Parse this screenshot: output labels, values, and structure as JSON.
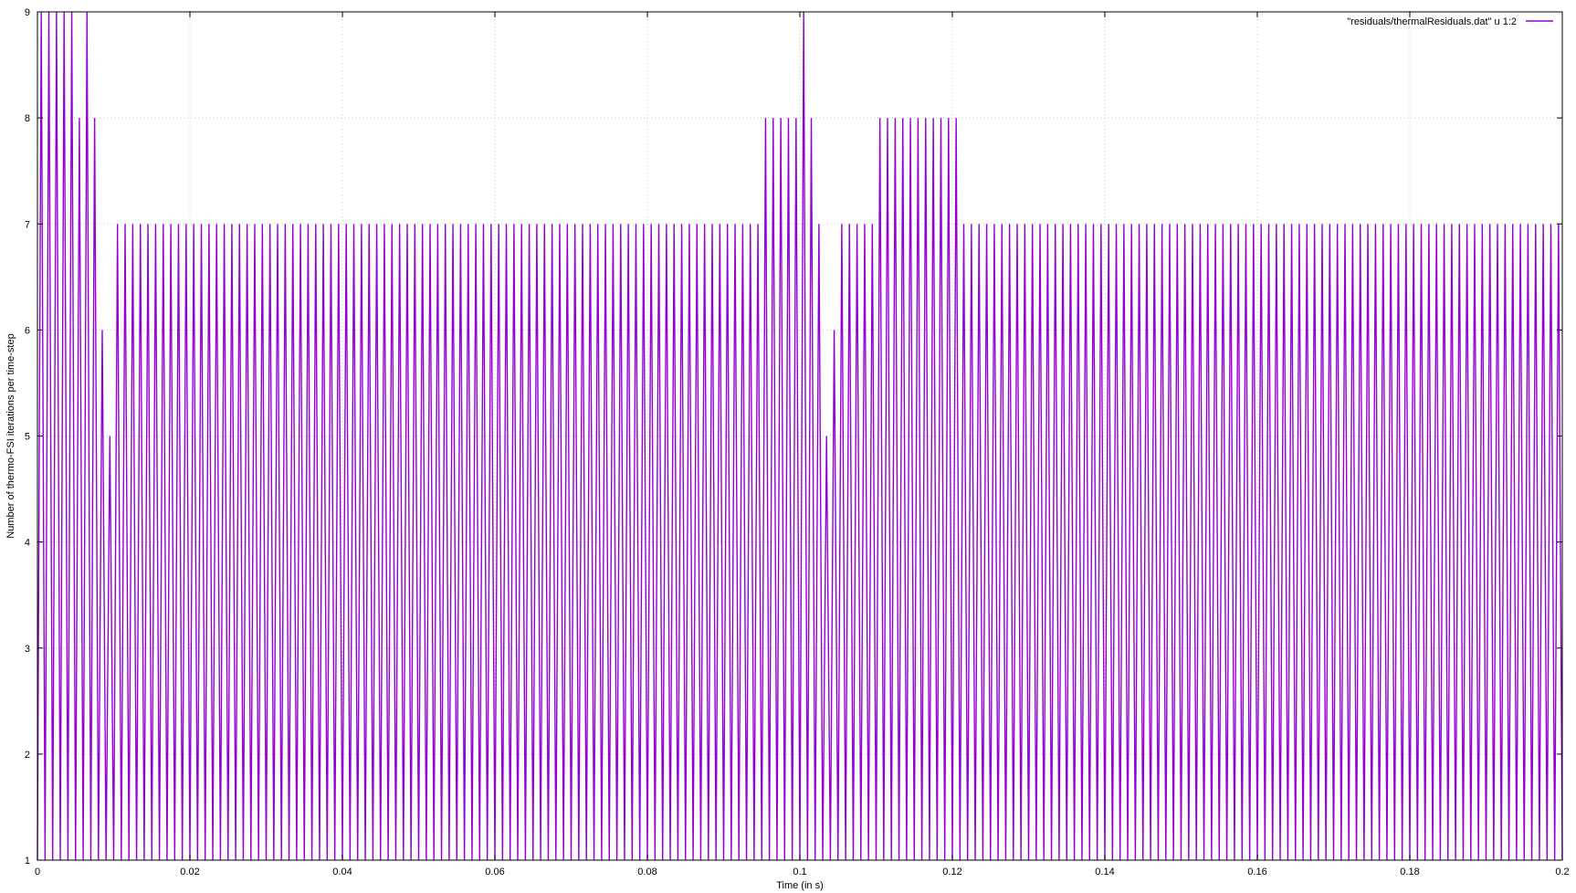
{
  "chart_data": {
    "type": "line",
    "title": "",
    "xlabel": "Time (in s)",
    "ylabel": "Number of thermo-FSI iterations per time-step",
    "xlim": [
      0,
      0.2
    ],
    "ylim": [
      1,
      9
    ],
    "grid": true,
    "legend_position": "top-right",
    "x_ticks": [
      0,
      0.02,
      0.04,
      0.06,
      0.08,
      0.1,
      0.12,
      0.14,
      0.16,
      0.18,
      0.2
    ],
    "x_tick_labels": [
      "0",
      "0.02",
      "0.04",
      "0.06",
      "0.08",
      "0.1",
      "0.12",
      "0.14",
      "0.16",
      "0.18",
      "0.2"
    ],
    "y_ticks": [
      1,
      2,
      3,
      4,
      5,
      6,
      7,
      8,
      9
    ],
    "y_tick_labels": [
      "1",
      "2",
      "3",
      "4",
      "5",
      "6",
      "7",
      "8",
      "9"
    ],
    "series": [
      {
        "name": "\"residuals/thermalResiduals.dat\" u 1:2",
        "color": "#9400d3",
        "description": "Each time-step rises from 1 iteration up to its peak; time step 0.001 s",
        "time_step": 0.001,
        "peaks": [
          9,
          9,
          9,
          9,
          9,
          8,
          9,
          8,
          6,
          5,
          7,
          7,
          7,
          7,
          7,
          7,
          7,
          7,
          7,
          7,
          7,
          7,
          7,
          7,
          7,
          7,
          7,
          7,
          7,
          7,
          7,
          7,
          7,
          7,
          7,
          7,
          7,
          7,
          7,
          7,
          7,
          7,
          7,
          7,
          7,
          7,
          7,
          7,
          7,
          7,
          7,
          7,
          7,
          7,
          7,
          7,
          7,
          7,
          7,
          7,
          7,
          7,
          7,
          7,
          7,
          7,
          7,
          7,
          7,
          7,
          7,
          7,
          7,
          7,
          7,
          7,
          7,
          7,
          7,
          7,
          7,
          7,
          7,
          7,
          7,
          7,
          7,
          7,
          7,
          7,
          7,
          7,
          7,
          7,
          7,
          8,
          8,
          8,
          8,
          8,
          9,
          8,
          7,
          5,
          6,
          7,
          7,
          7,
          7,
          7,
          8,
          8,
          8,
          8,
          8,
          8,
          8,
          8,
          8,
          8,
          8,
          7,
          7,
          7,
          7,
          7,
          7,
          7,
          7,
          7,
          7,
          7,
          7,
          7,
          7,
          7,
          7,
          7,
          7,
          7,
          7,
          7,
          7,
          7,
          7,
          7,
          7,
          7,
          7,
          7,
          7,
          7,
          7,
          7,
          7,
          7,
          7,
          7,
          7,
          7,
          7,
          7,
          7,
          7,
          7,
          7,
          7,
          7,
          7,
          7,
          7,
          7,
          7,
          7,
          7,
          7,
          7,
          7,
          7,
          7,
          7,
          7,
          7,
          7,
          7,
          7,
          7,
          7,
          7,
          7,
          7,
          7,
          7,
          7,
          7,
          7,
          7,
          7,
          7,
          7
        ]
      }
    ]
  }
}
